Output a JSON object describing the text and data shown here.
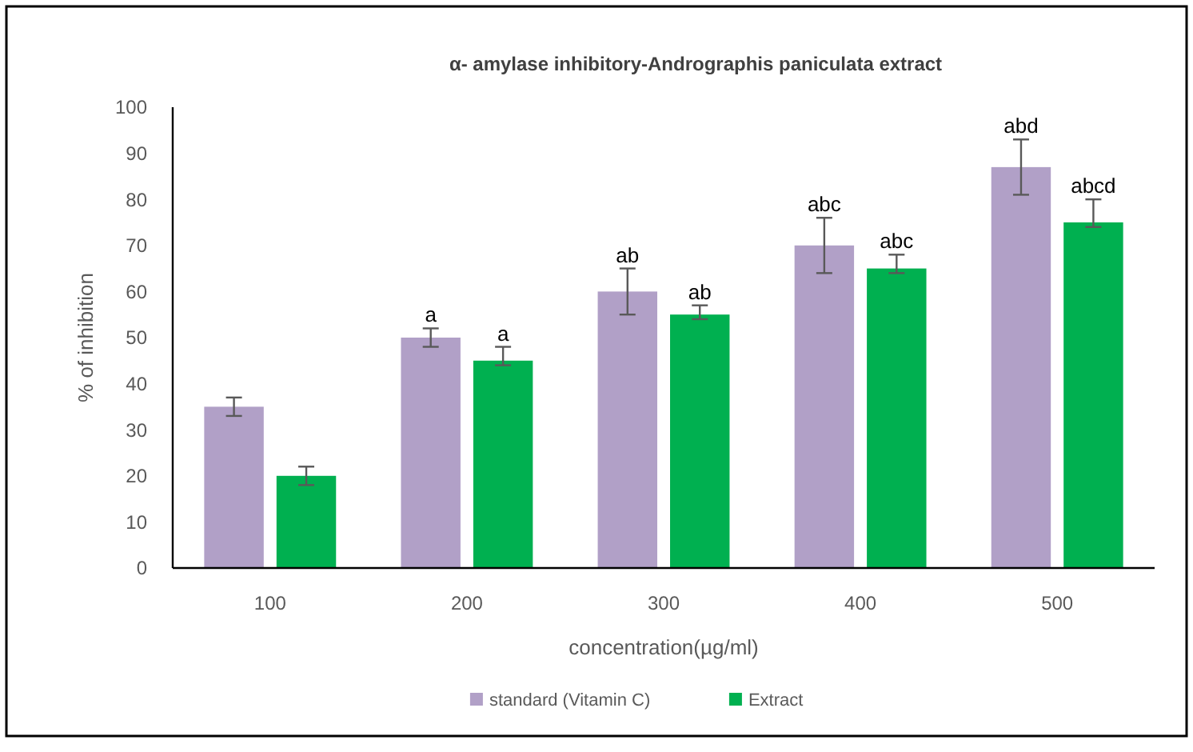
{
  "chart_data": {
    "type": "bar",
    "title": "α- amylase inhibitory-Andrographis  paniculata extract",
    "xlabel": "concentration(µg/ml)",
    "ylabel": "% of inhibition",
    "categories": [
      "100",
      "200",
      "300",
      "400",
      "500"
    ],
    "series": [
      {
        "name": "standard (Vitamin C)",
        "color": "#b1a0c7",
        "values": [
          35,
          50,
          60,
          70,
          87
        ],
        "errors": [
          2,
          2,
          5,
          6,
          6
        ]
      },
      {
        "name": "Extract",
        "color": "#00b050",
        "values": [
          20,
          45,
          55,
          65,
          75
        ],
        "errors": [
          2,
          [
            44,
            48
          ],
          [
            54,
            57
          ],
          [
            64,
            68
          ],
          [
            74,
            80
          ]
        ]
      }
    ],
    "ylim": [
      0,
      100
    ],
    "yticks": [
      0,
      10,
      20,
      30,
      40,
      50,
      60,
      70,
      80,
      90,
      100
    ],
    "grid": false,
    "legend": "bottom",
    "annotations": [
      {
        "text": "a",
        "x": "200",
        "y": 50
      },
      {
        "text": "a",
        "x": "200",
        "y": 45
      },
      {
        "text": "ab",
        "x": "300",
        "y": 60
      },
      {
        "text": "ab",
        "x": "300",
        "y": 55
      },
      {
        "text": "abc",
        "x": "400",
        "y": 70
      },
      {
        "text": "abc",
        "x": "400",
        "y": 65
      },
      {
        "text": "abd",
        "x": "500",
        "y": 87
      },
      {
        "text": "abcd",
        "x": "500",
        "y": 75
      }
    ]
  }
}
